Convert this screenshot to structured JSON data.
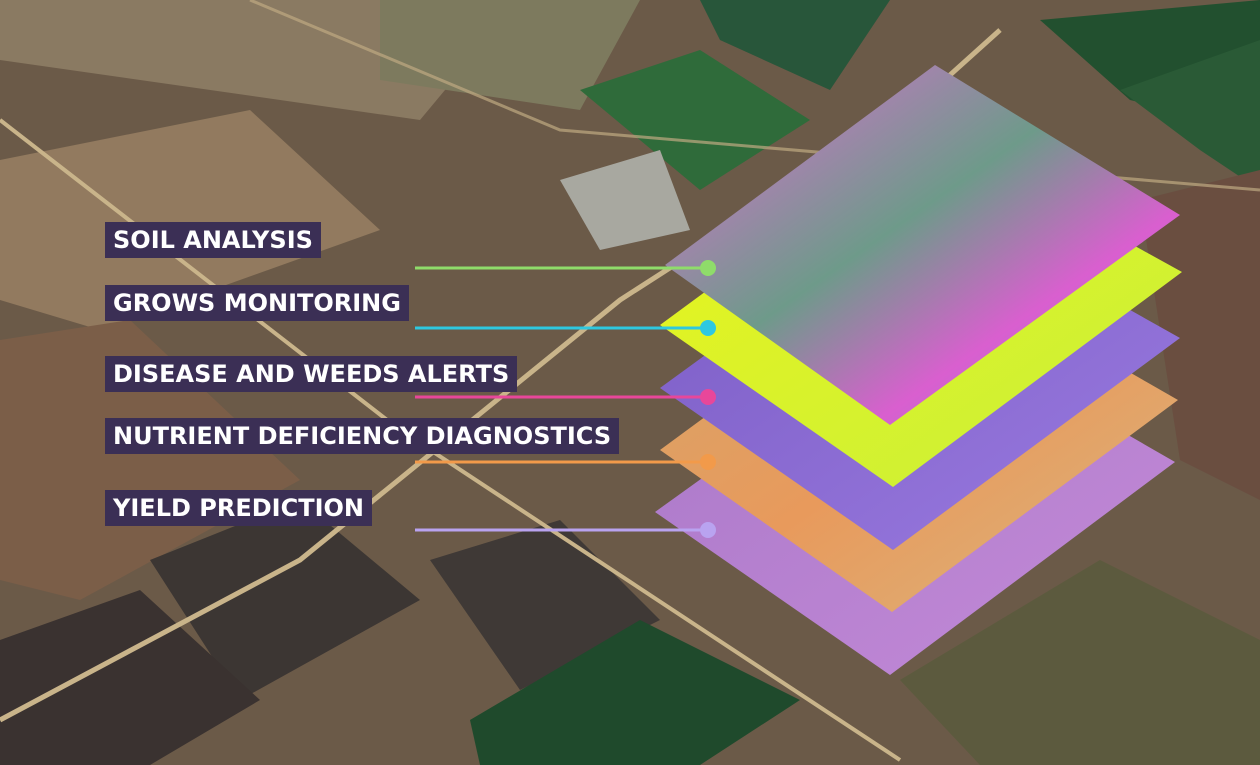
{
  "layers": [
    "SOIL ANALYSIS",
    "GROWS MONITORING",
    "DISEASE AND WEEDS ALERTS",
    "NUTRIENT DEFICIENCY DIAGNOSTICS",
    "YIELD PREDICTION"
  ]
}
